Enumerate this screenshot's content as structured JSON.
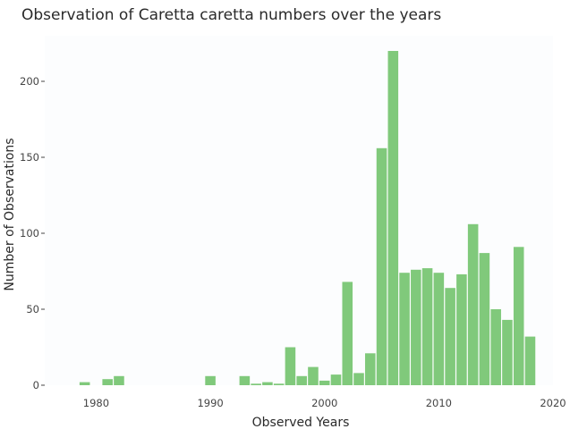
{
  "chart_data": {
    "type": "bar",
    "title": "Observation of Caretta caretta numbers over the years",
    "xlabel": "Observed Years",
    "ylabel": "Number of Observations",
    "xlim": [
      1975.5,
      2020
    ],
    "ylim": [
      0,
      230
    ],
    "x_ticks": [
      1980,
      1990,
      2000,
      2010,
      2020
    ],
    "y_ticks": [
      0,
      50,
      100,
      150,
      200
    ],
    "bar_color": "#80c97b",
    "plot_background": "#fcfdfe",
    "grid": false,
    "legend": false,
    "bars": [
      {
        "x": 1979,
        "y": 2
      },
      {
        "x": 1981,
        "y": 4
      },
      {
        "x": 1982,
        "y": 6
      },
      {
        "x": 1990,
        "y": 6
      },
      {
        "x": 1993,
        "y": 6
      },
      {
        "x": 1994,
        "y": 1
      },
      {
        "x": 1995,
        "y": 2
      },
      {
        "x": 1996,
        "y": 1
      },
      {
        "x": 1997,
        "y": 25
      },
      {
        "x": 1998,
        "y": 6
      },
      {
        "x": 1999,
        "y": 12
      },
      {
        "x": 2000,
        "y": 3
      },
      {
        "x": 2001,
        "y": 7
      },
      {
        "x": 2002,
        "y": 68
      },
      {
        "x": 2003,
        "y": 8
      },
      {
        "x": 2004,
        "y": 21
      },
      {
        "x": 2005,
        "y": 156
      },
      {
        "x": 2006,
        "y": 220
      },
      {
        "x": 2007,
        "y": 74
      },
      {
        "x": 2008,
        "y": 76
      },
      {
        "x": 2009,
        "y": 77
      },
      {
        "x": 2010,
        "y": 74
      },
      {
        "x": 2011,
        "y": 64
      },
      {
        "x": 2012,
        "y": 73
      },
      {
        "x": 2013,
        "y": 106
      },
      {
        "x": 2014,
        "y": 87
      },
      {
        "x": 2015,
        "y": 50
      },
      {
        "x": 2016,
        "y": 43
      },
      {
        "x": 2017,
        "y": 91
      },
      {
        "x": 2018,
        "y": 32
      }
    ]
  }
}
